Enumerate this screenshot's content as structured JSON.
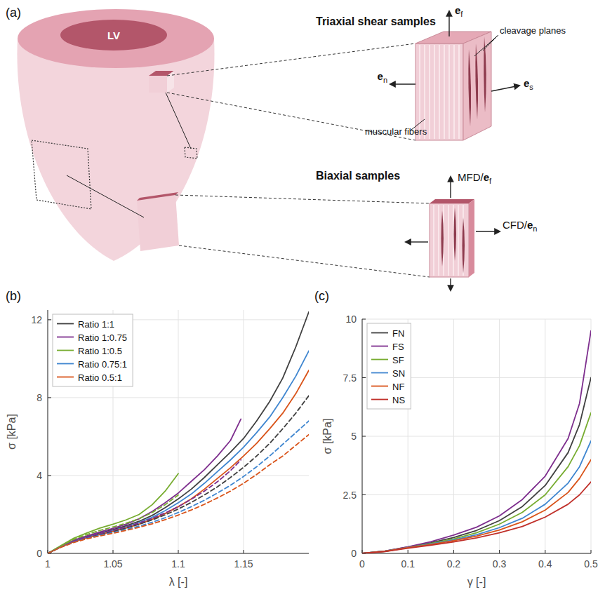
{
  "diagram": {
    "panel_label": "(a)",
    "heart": {
      "label": "LV"
    },
    "triaxial": {
      "title": "Triaxial shear samples",
      "cleavage": "cleavage planes",
      "fibers": "muscular fibers",
      "axes": [
        {
          "text": "e",
          "sub": "f"
        },
        {
          "text": "e",
          "sub": "n"
        },
        {
          "text": "e",
          "sub": "s"
        }
      ]
    },
    "biaxial": {
      "title": "Biaxial samples",
      "axes": [
        {
          "prefix": "MFD/",
          "text": "e",
          "sub": "f"
        },
        {
          "prefix": "CFD/",
          "text": "e",
          "sub": "n"
        }
      ]
    }
  },
  "chart_data": [
    {
      "type": "line",
      "panel_label": "(b)",
      "x_label": "λ [-]",
      "y_label": "σ [kPa]",
      "xlim": [
        1,
        1.2
      ],
      "ylim": [
        0,
        12.5
      ],
      "xticks": [
        1,
        1.05,
        1.1,
        1.15
      ],
      "yticks": [
        0,
        4,
        8,
        12
      ],
      "grid": true,
      "legend": "northwest",
      "series": [
        {
          "name": "Ratio 1:1",
          "color": "#404040",
          "line_style": "solid",
          "x": [
            1,
            1.01,
            1.02,
            1.03,
            1.04,
            1.05,
            1.06,
            1.07,
            1.08,
            1.09,
            1.1,
            1.11,
            1.12,
            1.13,
            1.14,
            1.15,
            1.16,
            1.17,
            1.18,
            1.19,
            1.2
          ],
          "values": [
            0,
            0.35,
            0.65,
            0.85,
            1.05,
            1.22,
            1.42,
            1.65,
            1.95,
            2.35,
            2.8,
            3.3,
            3.9,
            4.55,
            5.2,
            5.9,
            6.8,
            7.8,
            9.0,
            10.6,
            12.4
          ]
        },
        {
          "name": "Ratio 1:0.75",
          "color": "#7E2F8E",
          "line_style": "solid",
          "x": [
            1,
            1.01,
            1.02,
            1.03,
            1.04,
            1.05,
            1.06,
            1.07,
            1.08,
            1.09,
            1.1,
            1.11,
            1.12,
            1.13,
            1.14,
            1.148
          ],
          "values": [
            0,
            0.36,
            0.68,
            0.9,
            1.1,
            1.28,
            1.5,
            1.78,
            2.15,
            2.6,
            3.1,
            3.7,
            4.3,
            5.0,
            5.8,
            6.9
          ]
        },
        {
          "name": "Ratio 1:0.5",
          "color": "#77AC30",
          "line_style": "solid",
          "x": [
            1,
            1.01,
            1.02,
            1.03,
            1.04,
            1.05,
            1.06,
            1.07,
            1.08,
            1.09,
            1.1
          ],
          "values": [
            0,
            0.4,
            0.78,
            1.05,
            1.3,
            1.5,
            1.72,
            2.0,
            2.5,
            3.2,
            4.1
          ]
        },
        {
          "name": "Ratio 0.75:1",
          "color": "#3F86D0",
          "line_style": "solid",
          "x": [
            1,
            1.01,
            1.02,
            1.03,
            1.04,
            1.05,
            1.06,
            1.07,
            1.08,
            1.09,
            1.1,
            1.11,
            1.12,
            1.13,
            1.14,
            1.15,
            1.16,
            1.17,
            1.18,
            1.19,
            1.2
          ],
          "values": [
            0,
            0.34,
            0.62,
            0.82,
            1.0,
            1.17,
            1.36,
            1.58,
            1.85,
            2.2,
            2.6,
            3.05,
            3.6,
            4.2,
            4.8,
            5.45,
            6.2,
            7.0,
            8.0,
            9.1,
            10.4
          ]
        },
        {
          "name": "Ratio 0.5:1",
          "color": "#D95319",
          "line_style": "solid",
          "x": [
            1,
            1.01,
            1.02,
            1.03,
            1.04,
            1.05,
            1.06,
            1.07,
            1.08,
            1.09,
            1.1,
            1.11,
            1.12,
            1.13,
            1.14,
            1.15,
            1.16,
            1.17,
            1.18,
            1.19,
            1.2
          ],
          "values": [
            0,
            0.33,
            0.6,
            0.8,
            0.97,
            1.13,
            1.3,
            1.5,
            1.75,
            2.05,
            2.4,
            2.8,
            3.3,
            3.85,
            4.4,
            5.0,
            5.65,
            6.4,
            7.2,
            8.2,
            9.4
          ]
        },
        {
          "color": "#404040",
          "line_style": "dashed",
          "x": [
            1,
            1.01,
            1.02,
            1.03,
            1.04,
            1.05,
            1.06,
            1.07,
            1.08,
            1.09,
            1.1,
            1.11,
            1.12,
            1.13,
            1.14,
            1.15,
            1.16,
            1.17,
            1.18,
            1.19,
            1.2
          ],
          "values": [
            0,
            0.33,
            0.6,
            0.8,
            0.97,
            1.12,
            1.3,
            1.5,
            1.72,
            1.98,
            2.28,
            2.62,
            3.0,
            3.42,
            3.9,
            4.42,
            5.0,
            5.65,
            6.4,
            7.2,
            8.1
          ]
        },
        {
          "color": "#7E2F8E",
          "line_style": "dashed",
          "x": [
            1,
            1.01,
            1.02,
            1.03,
            1.04,
            1.05,
            1.06,
            1.07,
            1.08,
            1.09,
            1.1,
            1.11,
            1.12,
            1.13,
            1.14,
            1.148
          ],
          "values": [
            0,
            0.34,
            0.63,
            0.84,
            1.02,
            1.18,
            1.36,
            1.56,
            1.8,
            2.08,
            2.4,
            2.78,
            3.2,
            3.68,
            4.25,
            4.8
          ]
        },
        {
          "color": "#77AC30",
          "line_style": "dashed",
          "x": [
            1,
            1.01,
            1.02,
            1.03,
            1.04,
            1.05,
            1.06,
            1.07,
            1.08,
            1.09,
            1.1
          ],
          "values": [
            0,
            0.38,
            0.72,
            0.97,
            1.18,
            1.36,
            1.55,
            1.78,
            2.1,
            2.5,
            3.0
          ]
        },
        {
          "color": "#3F86D0",
          "line_style": "dashed",
          "x": [
            1,
            1.01,
            1.02,
            1.03,
            1.04,
            1.05,
            1.06,
            1.07,
            1.08,
            1.09,
            1.1,
            1.11,
            1.12,
            1.13,
            1.14,
            1.15,
            1.16,
            1.17,
            1.18,
            1.19,
            1.2
          ],
          "values": [
            0,
            0.32,
            0.58,
            0.77,
            0.93,
            1.07,
            1.23,
            1.4,
            1.6,
            1.83,
            2.1,
            2.4,
            2.73,
            3.1,
            3.5,
            3.95,
            4.45,
            5.0,
            5.6,
            6.2,
            6.8
          ]
        },
        {
          "color": "#D95319",
          "line_style": "dashed",
          "x": [
            1,
            1.01,
            1.02,
            1.03,
            1.04,
            1.05,
            1.06,
            1.07,
            1.08,
            1.09,
            1.1,
            1.11,
            1.12,
            1.13,
            1.14,
            1.15,
            1.16,
            1.17,
            1.18,
            1.19,
            1.2
          ],
          "values": [
            0,
            0.31,
            0.56,
            0.75,
            0.9,
            1.03,
            1.18,
            1.34,
            1.52,
            1.73,
            1.97,
            2.23,
            2.52,
            2.85,
            3.2,
            3.6,
            4.05,
            4.55,
            5.0,
            5.55,
            6.1
          ]
        }
      ]
    },
    {
      "type": "line",
      "panel_label": "(c)",
      "x_label": "γ [-]",
      "y_label": "σ [kPa]",
      "xlim": [
        0,
        0.5
      ],
      "ylim": [
        0,
        10
      ],
      "xticks": [
        0,
        0.1,
        0.2,
        0.3,
        0.4,
        0.5
      ],
      "yticks": [
        0,
        2.5,
        5,
        7.5,
        10
      ],
      "grid": true,
      "legend": "northwest",
      "x": [
        0,
        0.05,
        0.1,
        0.15,
        0.2,
        0.25,
        0.3,
        0.35,
        0.4,
        0.45,
        0.475,
        0.5
      ],
      "series": [
        {
          "name": "FN",
          "color": "#404040",
          "line_style": "solid",
          "values": [
            0,
            0.1,
            0.27,
            0.45,
            0.68,
            0.98,
            1.4,
            2.0,
            2.9,
            4.3,
            5.5,
            7.5
          ]
        },
        {
          "name": "FS",
          "color": "#7E2F8E",
          "line_style": "solid",
          "values": [
            0,
            0.1,
            0.28,
            0.5,
            0.78,
            1.12,
            1.6,
            2.3,
            3.3,
            4.9,
            6.4,
            9.5
          ]
        },
        {
          "name": "SF",
          "color": "#77AC30",
          "line_style": "solid",
          "values": [
            0,
            0.09,
            0.25,
            0.42,
            0.62,
            0.88,
            1.25,
            1.75,
            2.5,
            3.7,
            4.6,
            6.0
          ]
        },
        {
          "name": "SN",
          "color": "#3F86D0",
          "line_style": "solid",
          "values": [
            0,
            0.09,
            0.24,
            0.4,
            0.57,
            0.8,
            1.1,
            1.5,
            2.1,
            3.0,
            3.7,
            4.8
          ]
        },
        {
          "name": "NF",
          "color": "#D95319",
          "line_style": "solid",
          "values": [
            0,
            0.09,
            0.24,
            0.38,
            0.54,
            0.74,
            1.0,
            1.35,
            1.85,
            2.6,
            3.2,
            4.0
          ]
        },
        {
          "name": "NS",
          "color": "#C0302A",
          "line_style": "solid",
          "values": [
            0,
            0.08,
            0.22,
            0.35,
            0.49,
            0.66,
            0.88,
            1.15,
            1.55,
            2.1,
            2.5,
            3.05
          ]
        }
      ]
    }
  ]
}
